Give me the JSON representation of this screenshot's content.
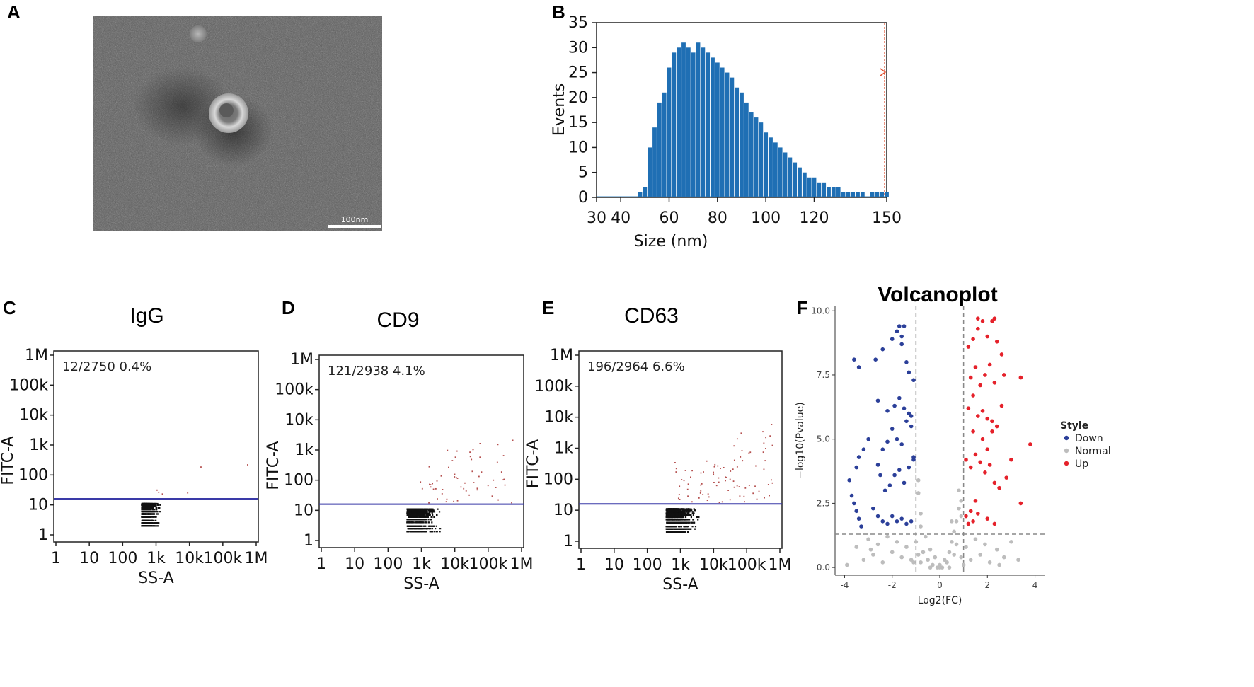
{
  "panels": {
    "A": {
      "letter": "A",
      "scale_bar_label": "100nm"
    },
    "B": {
      "letter": "B"
    },
    "C": {
      "letter": "C"
    },
    "D": {
      "letter": "D"
    },
    "E": {
      "letter": "E"
    },
    "F": {
      "letter": "F"
    }
  },
  "colors": {
    "histogram": "#1f6fb4",
    "cutoff": "#e05030",
    "gate_line": "#3a3aa8",
    "down": "#2b3f99",
    "normal": "#bdbdbd",
    "up": "#e5212a"
  },
  "chart_data": [
    {
      "id": "B",
      "type": "bar",
      "title": "",
      "xlabel": "Size (nm)",
      "ylabel": "Events",
      "xlim": [
        30,
        150
      ],
      "ylim": [
        0,
        35
      ],
      "xticks": [
        "30",
        "40",
        "60",
        "80",
        "100",
        "120",
        "150"
      ],
      "xtick_values": [
        30,
        40,
        60,
        80,
        100,
        120,
        150
      ],
      "yticks": [
        "0",
        "5",
        "10",
        "15",
        "20",
        "25",
        "30",
        "35"
      ],
      "ytick_values": [
        0,
        5,
        10,
        15,
        20,
        25,
        30,
        35
      ],
      "x": [
        48,
        50,
        52,
        54,
        56,
        58,
        60,
        62,
        64,
        66,
        68,
        70,
        72,
        74,
        76,
        78,
        80,
        82,
        84,
        86,
        88,
        90,
        92,
        94,
        96,
        98,
        100,
        102,
        104,
        106,
        108,
        110,
        112,
        114,
        116,
        118,
        120,
        122,
        124,
        126,
        128,
        130,
        132,
        134,
        136,
        138,
        140,
        142,
        144,
        146,
        148,
        150
      ],
      "values": [
        1,
        2,
        10,
        14,
        19,
        21,
        26,
        29,
        30,
        31,
        30,
        29,
        31,
        30,
        29,
        28,
        27,
        26,
        25,
        24,
        22,
        21,
        19,
        17,
        16,
        15,
        13,
        12,
        11,
        10,
        9,
        8,
        7,
        6,
        5,
        4,
        4,
        3,
        3,
        2,
        2,
        2,
        1,
        1,
        1,
        1,
        1,
        0,
        1,
        1,
        1,
        1
      ]
    },
    {
      "id": "C",
      "type": "scatter",
      "title": "IgG",
      "xlabel": "SS-A",
      "ylabel": "FITC-A",
      "xticks": [
        "1",
        "10",
        "100",
        "1k",
        "10k",
        "100k",
        "1M"
      ],
      "yticks": [
        "1",
        "10",
        "100",
        "1k",
        "10k",
        "100k",
        "1M"
      ],
      "annotation": "12/2750  0.4%",
      "gate": 16,
      "events_total": 2750,
      "events_positive": 12
    },
    {
      "id": "D",
      "type": "scatter",
      "title": "CD9",
      "xlabel": "SS-A",
      "ylabel": "FITC-A",
      "xticks": [
        "1",
        "10",
        "100",
        "1k",
        "10k",
        "100k",
        "1M"
      ],
      "yticks": [
        "1",
        "10",
        "100",
        "1k",
        "10k",
        "100k",
        "1M"
      ],
      "annotation": "121/2938  4.1%",
      "gate": 16,
      "events_total": 2938,
      "events_positive": 121
    },
    {
      "id": "E",
      "type": "scatter",
      "title": "CD63",
      "xlabel": "SS-A",
      "ylabel": "FITC-A",
      "xticks": [
        "1",
        "10",
        "100",
        "1k",
        "10k",
        "100k",
        "1M"
      ],
      "yticks": [
        "1",
        "10",
        "100",
        "1k",
        "10k",
        "100k",
        "1M"
      ],
      "annotation": "196/2964  6.6%",
      "gate": 16,
      "events_total": 2964,
      "events_positive": 196
    },
    {
      "id": "F",
      "type": "scatter",
      "title": "Volcanoplot",
      "xlabel": "Log2(FC)",
      "ylabel": "−log10(Pvalue)",
      "xlim": [
        -4.4,
        4.4
      ],
      "ylim": [
        -0.3,
        10.2
      ],
      "xticks": [
        "-4",
        "-2",
        "0",
        "2",
        "4"
      ],
      "xtick_values": [
        -4,
        -2,
        0,
        2,
        4
      ],
      "yticks": [
        "0.0",
        "2.5",
        "5.0",
        "7.5",
        "10.0"
      ],
      "ytick_values": [
        0,
        2.5,
        5,
        7.5,
        10
      ],
      "thresholds": {
        "fc": [
          -1,
          1
        ],
        "p": 1.3
      },
      "legend_title": "Style",
      "legend": [
        "Down",
        "Normal",
        "Up"
      ],
      "series": [
        {
          "name": "Down",
          "points": [
            [
              -3.8,
              3.4
            ],
            [
              -3.7,
              2.8
            ],
            [
              -3.6,
              2.5
            ],
            [
              -3.5,
              2.2
            ],
            [
              -3.4,
              1.9
            ],
            [
              -3.3,
              1.6
            ],
            [
              -3.5,
              3.9
            ],
            [
              -3.4,
              4.3
            ],
            [
              -3.2,
              4.6
            ],
            [
              -3.0,
              5.0
            ],
            [
              -3.6,
              8.1
            ],
            [
              -3.4,
              7.8
            ],
            [
              -2.8,
              2.3
            ],
            [
              -2.6,
              2.0
            ],
            [
              -2.4,
              1.8
            ],
            [
              -2.2,
              1.7
            ],
            [
              -2.0,
              2.0
            ],
            [
              -1.8,
              1.8
            ],
            [
              -1.6,
              1.9
            ],
            [
              -1.4,
              1.7
            ],
            [
              -1.2,
              1.8
            ],
            [
              -2.5,
              3.6
            ],
            [
              -2.3,
              3.0
            ],
            [
              -2.1,
              3.2
            ],
            [
              -1.9,
              3.6
            ],
            [
              -1.7,
              3.8
            ],
            [
              -1.5,
              3.3
            ],
            [
              -1.3,
              3.9
            ],
            [
              -1.1,
              4.2
            ],
            [
              -2.6,
              4.0
            ],
            [
              -2.4,
              4.6
            ],
            [
              -2.2,
              4.9
            ],
            [
              -2.0,
              5.4
            ],
            [
              -1.8,
              5.0
            ],
            [
              -1.6,
              4.8
            ],
            [
              -1.4,
              5.7
            ],
            [
              -1.2,
              5.5
            ],
            [
              -1.1,
              4.3
            ],
            [
              -2.6,
              6.5
            ],
            [
              -2.2,
              6.1
            ],
            [
              -1.9,
              6.3
            ],
            [
              -1.7,
              6.6
            ],
            [
              -1.5,
              6.2
            ],
            [
              -1.3,
              6.0
            ],
            [
              -1.2,
              5.9
            ],
            [
              -2.7,
              8.1
            ],
            [
              -2.4,
              8.5
            ],
            [
              -2.0,
              8.9
            ],
            [
              -1.8,
              9.2
            ],
            [
              -1.6,
              8.7
            ],
            [
              -1.4,
              8.0
            ],
            [
              -1.3,
              7.6
            ],
            [
              -1.1,
              7.3
            ],
            [
              -1.7,
              9.4
            ],
            [
              -1.5,
              9.4
            ],
            [
              -1.6,
              9.0
            ]
          ]
        },
        {
          "name": "Up",
          "points": [
            [
              1.1,
              2.0
            ],
            [
              1.2,
              1.7
            ],
            [
              1.3,
              2.2
            ],
            [
              1.4,
              1.8
            ],
            [
              1.5,
              2.6
            ],
            [
              1.6,
              2.1
            ],
            [
              2.0,
              1.9
            ],
            [
              2.3,
              1.7
            ],
            [
              1.1,
              4.2
            ],
            [
              1.3,
              3.9
            ],
            [
              1.5,
              4.4
            ],
            [
              1.7,
              4.1
            ],
            [
              1.9,
              3.7
            ],
            [
              2.1,
              4.0
            ],
            [
              2.3,
              3.3
            ],
            [
              2.5,
              3.1
            ],
            [
              2.8,
              3.5
            ],
            [
              3.0,
              4.2
            ],
            [
              3.4,
              2.5
            ],
            [
              3.8,
              4.8
            ],
            [
              1.2,
              6.2
            ],
            [
              1.4,
              6.7
            ],
            [
              1.6,
              5.9
            ],
            [
              1.8,
              6.1
            ],
            [
              2.0,
              5.8
            ],
            [
              2.2,
              5.3
            ],
            [
              2.4,
              5.5
            ],
            [
              2.6,
              6.3
            ],
            [
              1.2,
              8.6
            ],
            [
              1.4,
              8.9
            ],
            [
              1.6,
              9.3
            ],
            [
              1.8,
              9.6
            ],
            [
              2.0,
              9.0
            ],
            [
              2.2,
              9.6
            ],
            [
              2.4,
              8.8
            ],
            [
              2.6,
              8.3
            ],
            [
              1.3,
              7.4
            ],
            [
              1.5,
              7.8
            ],
            [
              1.7,
              7.1
            ],
            [
              1.9,
              7.5
            ],
            [
              2.1,
              7.9
            ],
            [
              2.3,
              7.2
            ],
            [
              2.7,
              7.5
            ],
            [
              3.4,
              7.4
            ],
            [
              1.6,
              9.7
            ],
            [
              2.3,
              9.7
            ],
            [
              1.8,
              5.0
            ],
            [
              2.0,
              4.6
            ],
            [
              2.2,
              5.7
            ],
            [
              1.4,
              5.3
            ]
          ]
        },
        {
          "name": "Normal",
          "points": [
            [
              -3.9,
              0.1
            ],
            [
              -3.5,
              0.8
            ],
            [
              -3.2,
              0.3
            ],
            [
              -3.0,
              1.1
            ],
            [
              -2.8,
              0.5
            ],
            [
              -2.6,
              0.9
            ],
            [
              -2.4,
              0.2
            ],
            [
              -2.2,
              1.2
            ],
            [
              -2.0,
              0.6
            ],
            [
              -1.8,
              1.0
            ],
            [
              -1.6,
              0.4
            ],
            [
              -1.4,
              0.8
            ],
            [
              -1.2,
              0.3
            ],
            [
              -1.0,
              1.0
            ],
            [
              -0.9,
              0.5
            ],
            [
              -0.8,
              0.2
            ],
            [
              -0.7,
              0.6
            ],
            [
              -0.6,
              1.2
            ],
            [
              -0.5,
              0.3
            ],
            [
              -0.4,
              0.7
            ],
            [
              -0.3,
              0.1
            ],
            [
              -0.2,
              0.4
            ],
            [
              -0.1,
              0.0
            ],
            [
              0.0,
              0.1
            ],
            [
              0.1,
              0.0
            ],
            [
              0.2,
              0.3
            ],
            [
              0.3,
              0.2
            ],
            [
              0.4,
              0.6
            ],
            [
              0.5,
              1.0
            ],
            [
              0.6,
              1.4
            ],
            [
              0.7,
              1.8
            ],
            [
              0.8,
              2.3
            ],
            [
              0.9,
              2.6
            ],
            [
              0.5,
              1.8
            ],
            [
              0.7,
              0.9
            ],
            [
              0.9,
              0.4
            ],
            [
              1.1,
              0.8
            ],
            [
              1.3,
              0.3
            ],
            [
              1.5,
              1.1
            ],
            [
              1.7,
              0.5
            ],
            [
              1.9,
              0.9
            ],
            [
              2.1,
              0.2
            ],
            [
              2.4,
              0.7
            ],
            [
              2.7,
              0.4
            ],
            [
              3.0,
              1.0
            ],
            [
              3.3,
              0.3
            ],
            [
              2.5,
              0.1
            ],
            [
              -0.9,
              3.4
            ],
            [
              -0.9,
              2.9
            ],
            [
              -0.8,
              2.1
            ],
            [
              -0.8,
              1.6
            ],
            [
              0.8,
              3.0
            ],
            [
              0.9,
              2.0
            ],
            [
              -2.9,
              0.7
            ],
            [
              -1.1,
              0.2
            ],
            [
              1.0,
              0.1
            ],
            [
              0.0,
              0.0
            ],
            [
              -0.4,
              0.0
            ],
            [
              0.4,
              0.0
            ],
            [
              0.6,
              0.5
            ]
          ]
        }
      ]
    }
  ]
}
